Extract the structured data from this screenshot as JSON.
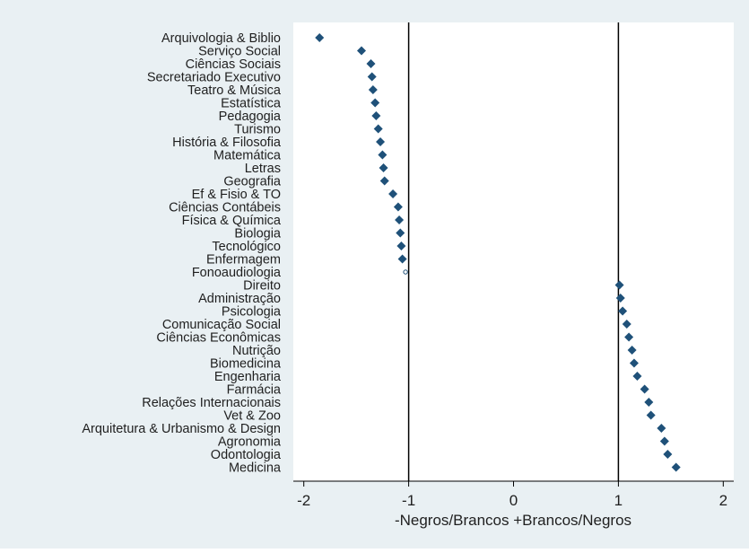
{
  "chart_data": {
    "type": "scatter",
    "title": "",
    "xlabel": "-Negros/Brancos +Brancos/Negros",
    "ylabel": "",
    "xlim": [
      -2.1,
      2.1
    ],
    "x_ticks": [
      -2,
      -1,
      0,
      1,
      2
    ],
    "x_tick_labels": [
      "-2",
      "-1",
      "0",
      "1",
      "2"
    ],
    "reference_lines_x": [
      -1,
      1
    ],
    "grid": false,
    "categories": [
      "Arquivologia & Biblio",
      "Serviço Social",
      "Ciências Sociais",
      "Secretariado Executivo",
      "Teatro & Música",
      "Estatística",
      "Pedagogia",
      "Turismo",
      "História & Filosofia",
      "Matemática",
      "Letras",
      "Geografia",
      "Ef & Fisio & TO",
      "Ciências Contábeis",
      "Física & Química",
      "Biologia",
      "Tecnológico",
      "Enfermagem",
      "Fonoaudiologia",
      "Direito",
      "Administração",
      "Psicologia",
      "Comunicação Social",
      "Ciências Econômicas",
      "Nutrição",
      "Biomedicina",
      "Engenharia",
      "Farmácia",
      "Relações Internacionais",
      "Vet & Zoo",
      "Arquitetura & Urbanismo & Design",
      "Agronomia",
      "Odontologia",
      "Medicina"
    ],
    "values": [
      -1.85,
      -1.45,
      -1.36,
      -1.35,
      -1.34,
      -1.32,
      -1.31,
      -1.29,
      -1.27,
      -1.25,
      -1.24,
      -1.23,
      -1.15,
      -1.1,
      -1.09,
      -1.08,
      -1.07,
      -1.06,
      -1.03,
      1.01,
      1.02,
      1.04,
      1.08,
      1.1,
      1.13,
      1.15,
      1.18,
      1.25,
      1.29,
      1.31,
      1.41,
      1.44,
      1.47,
      1.55
    ],
    "hollow_marker_categories": [
      "Fonoaudiologia"
    ],
    "colors": {
      "frame_background": "#e9f0f3",
      "plot_background": "#ffffff",
      "marker": "#1f5179",
      "reference_line": "#000000",
      "axis_text": "#1f1f1f"
    }
  }
}
